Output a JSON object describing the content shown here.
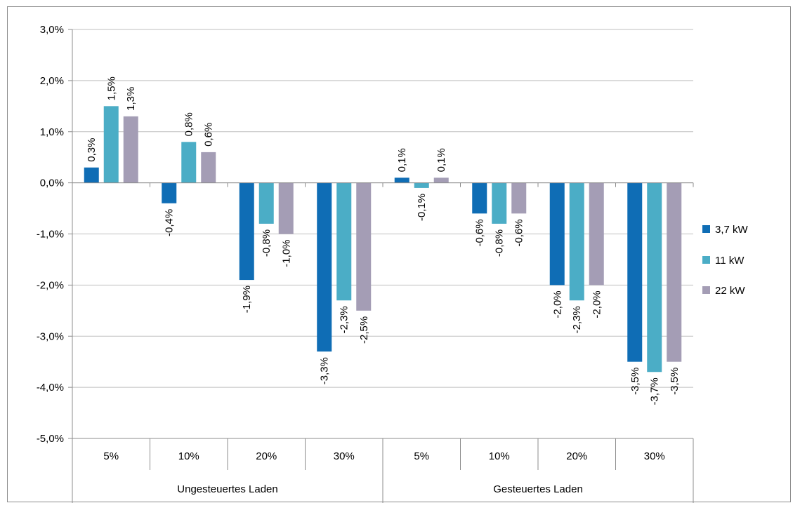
{
  "chart_data": {
    "type": "bar",
    "title": "",
    "xlabel": "",
    "ylabel": "",
    "ylim": [
      -5.0,
      3.0
    ],
    "y_ticks": [
      3.0,
      2.0,
      1.0,
      0.0,
      -1.0,
      -2.0,
      -3.0,
      -4.0,
      -5.0
    ],
    "y_tick_labels": [
      "3,0%",
      "2,0%",
      "1,0%",
      "0,0%",
      "-1,0%",
      "-2,0%",
      "-3,0%",
      "-4,0%",
      "-5,0%"
    ],
    "grid": true,
    "legend_position": "right",
    "groups": [
      {
        "label": "Ungesteuertes Laden",
        "categories": [
          "5%",
          "10%",
          "20%",
          "30%"
        ]
      },
      {
        "label": "Gesteuertes Laden",
        "categories": [
          "5%",
          "10%",
          "20%",
          "30%"
        ]
      }
    ],
    "categories": [
      "5%",
      "10%",
      "20%",
      "30%",
      "5%",
      "10%",
      "20%",
      "30%"
    ],
    "series": [
      {
        "name": "3,7 kW",
        "color": "#0f6db5",
        "values": [
          0.3,
          -0.4,
          -1.9,
          -3.3,
          0.1,
          -0.6,
          -2.0,
          -3.5
        ],
        "labels": [
          "0,3%",
          "-0,4%",
          "-1,9%",
          "-3,3%",
          "0,1%",
          "-0,6%",
          "-2,0%",
          "-3,5%"
        ]
      },
      {
        "name": "11 kW",
        "color": "#4badc6",
        "values": [
          1.5,
          0.8,
          -0.8,
          -2.3,
          -0.1,
          -0.8,
          -2.3,
          -3.7
        ],
        "labels": [
          "1,5%",
          "0,8%",
          "-0,8%",
          "-2,3%",
          "-0,1%",
          "-0,8%",
          "-2,3%",
          "-3,7%"
        ]
      },
      {
        "name": "22 kW",
        "color": "#a49db5",
        "values": [
          1.3,
          0.6,
          -1.0,
          -2.5,
          0.1,
          -0.6,
          -2.0,
          -3.5
        ],
        "labels": [
          "1,3%",
          "0,6%",
          "-1,0%",
          "-2,5%",
          "0,1%",
          "-0,6%",
          "-2,0%",
          "-3,5%"
        ]
      }
    ]
  }
}
